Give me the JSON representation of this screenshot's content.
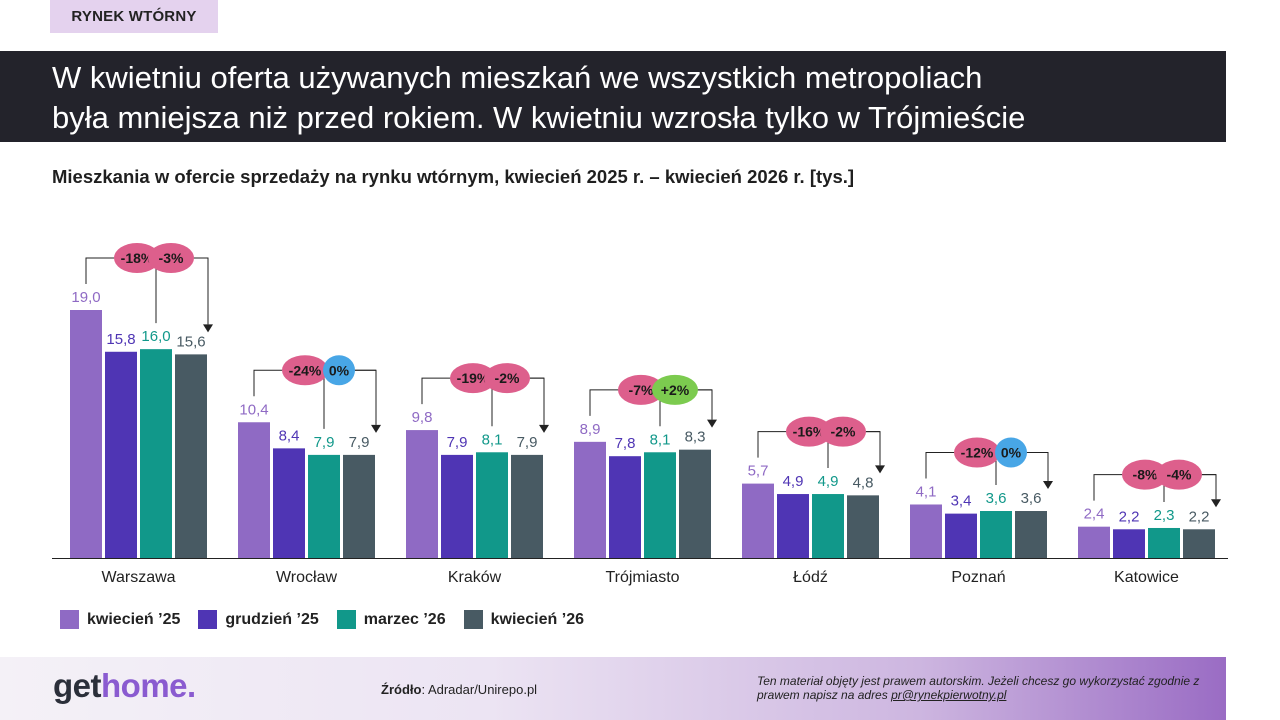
{
  "tag": "RYNEK WTÓRNY",
  "headline": {
    "line1": "W kwietniu oferta używanych mieszkań we wszystkich metropoliach",
    "line2": "była mniejsza niż przed rokiem. W kwietniu wzrosła tylko w Trójmieście"
  },
  "subtitle": "Mieszkania w ofercie sprzedaży na rynku wtórnym, kwiecień 2025 r. – kwiecień 2026 r. [tys.]",
  "chart_data": {
    "type": "bar",
    "title": "",
    "xlabel": "",
    "ylabel": "",
    "ylim": [
      0,
      20
    ],
    "grid": false,
    "legend_position": "bottom-left",
    "categories": [
      "Warszawa",
      "Wrocław",
      "Kraków",
      "Trójmiasto",
      "Łódź",
      "Poznań",
      "Katowice"
    ],
    "series": [
      {
        "name": "kwiecień ’25",
        "color": "#8f6ac4",
        "values": [
          19.0,
          10.4,
          9.8,
          8.9,
          5.7,
          4.1,
          2.4
        ],
        "labels": [
          "19,0",
          "10,4",
          "9,8",
          "8,9",
          "5,7",
          "4,1",
          "2,4"
        ]
      },
      {
        "name": "grudzień ’25",
        "color": "#4f35b4",
        "values": [
          15.8,
          8.4,
          7.9,
          7.8,
          4.9,
          3.4,
          2.2
        ],
        "labels": [
          "15,8",
          "8,4",
          "7,9",
          "7,8",
          "4,9",
          "3,4",
          "2,2"
        ]
      },
      {
        "name": "marzec ’26",
        "color": "#11988a",
        "values": [
          16.0,
          7.9,
          8.1,
          8.1,
          4.9,
          3.6,
          2.3
        ],
        "labels": [
          "16,0",
          "7,9",
          "8,1",
          "8,1",
          "4,9",
          "3,6",
          "2,3"
        ]
      },
      {
        "name": "kwiecień ’26",
        "color": "#485a63",
        "values": [
          15.6,
          7.9,
          7.9,
          8.3,
          4.8,
          3.6,
          2.2
        ],
        "labels": [
          "15,6",
          "7,9",
          "7,9",
          "8,3",
          "4,8",
          "3,6",
          "2,2"
        ]
      }
    ],
    "annotations": {
      "year_change": [
        "-18%",
        "-24%",
        "-19%",
        "-7%",
        "-16%",
        "-12%",
        "-8%"
      ],
      "month_change": [
        "-3%",
        "0%",
        "-2%",
        "+2%",
        "-2%",
        "0%",
        "-4%"
      ],
      "colors": {
        "decrease": "#dd5f8c",
        "zero": "#48a6e6",
        "increase": "#7ccb4f"
      }
    }
  },
  "footer": {
    "logo_get": "get",
    "logo_home": "home.",
    "source_label": "Źródło",
    "source_value": ": Adradar/Unirepo.pl",
    "copyright_text": "Ten materiał objęty jest prawem autorskim. Jeżeli chcesz go wykorzystać zgodnie z prawem napisz na adres ",
    "copyright_email": "pr@rynekpierwotny.pl"
  }
}
